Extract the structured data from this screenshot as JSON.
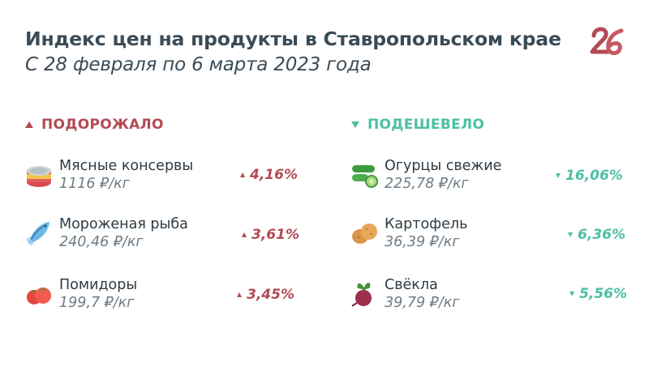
{
  "header": {
    "title": "Индекс цен на продукты в Ставропольском крае",
    "subtitle": "С 28 февраля по 6 марта 2023 года",
    "logo_text": "26"
  },
  "colors": {
    "up": "#b24a55",
    "down": "#4cbfa4",
    "title": "#3a4b57"
  },
  "rose": {
    "heading": "ПОДОРОЖАЛО",
    "items": [
      {
        "name": "Мясные консервы",
        "price": "1116 ₽/кг",
        "change": "4,16%",
        "icon": "canned-meat-icon"
      },
      {
        "name": "Мороженая рыба",
        "price": "240,46 ₽/кг",
        "change": "3,61%",
        "icon": "frozen-fish-icon"
      },
      {
        "name": "Помидоры",
        "price": "199,7 ₽/кг",
        "change": "3,45%",
        "icon": "tomato-icon"
      }
    ]
  },
  "fell": {
    "heading": "ПОДЕШЕВЕЛО",
    "items": [
      {
        "name": "Огурцы свежие",
        "price": "225,78 ₽/кг",
        "change": "16,06%",
        "icon": "cucumber-icon"
      },
      {
        "name": "Картофель",
        "price": "36,39 ₽/кг",
        "change": "6,36%",
        "icon": "potato-icon"
      },
      {
        "name": "Свёкла",
        "price": "39,79 ₽/кг",
        "change": "5,56%",
        "icon": "beet-icon"
      }
    ]
  }
}
